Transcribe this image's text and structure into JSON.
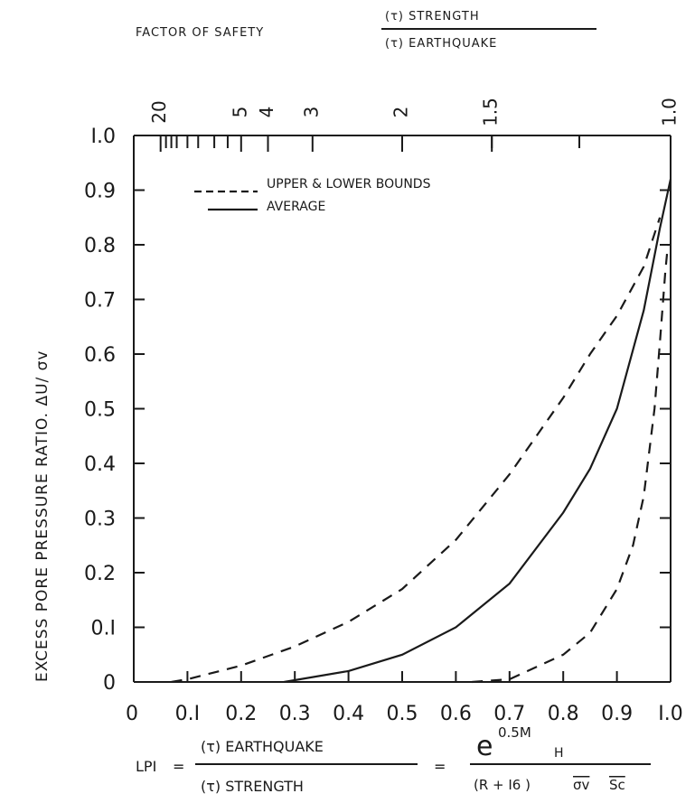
{
  "chart_data": {
    "type": "line",
    "title": "",
    "xlabel": "",
    "ylabel": "EXCESS PORE PRESSURE RATIO. ΔU/ σv",
    "xlim": [
      0,
      1.0
    ],
    "ylim": [
      0,
      1.0
    ],
    "x_ticks": [
      "0",
      "0.1",
      "0.2",
      "0.3",
      "0.4",
      "0.5",
      "0.6",
      "0.7",
      "0.8",
      "0.9",
      "1.0"
    ],
    "y_ticks": [
      "0",
      "0.1",
      "0.2",
      "0.3",
      "0.4",
      "0.5",
      "0.6",
      "0.7",
      "0.8",
      "0.9",
      "1.0"
    ],
    "x_ticks_display": [
      "0",
      "0.I",
      "0.2",
      "0.3",
      "0.4",
      "0.5",
      "0.6",
      "0.7",
      "0.8",
      "0.9",
      "I.0"
    ],
    "y_ticks_display": [
      "0",
      "0.I",
      "0.2",
      "0.3",
      "0.4",
      "0.5",
      "0.6",
      "0.7",
      "0.8",
      "0.9",
      "I.0"
    ],
    "grid": false,
    "legend_position": "top-left",
    "series": [
      {
        "name": "UPPER & LOWER BOUNDS",
        "style": "dashed",
        "x": [
          0.07,
          0.1,
          0.2,
          0.3,
          0.4,
          0.5,
          0.6,
          0.7,
          0.8,
          0.85,
          0.9,
          0.95,
          0.98
        ],
        "y": [
          0.0,
          0.005,
          0.03,
          0.065,
          0.11,
          0.17,
          0.26,
          0.38,
          0.52,
          0.6,
          0.67,
          0.76,
          0.85
        ]
      },
      {
        "name": "UPPER & LOWER BOUNDS",
        "style": "dashed",
        "x": [
          0.63,
          0.7,
          0.8,
          0.85,
          0.9,
          0.93,
          0.95,
          0.97,
          0.98,
          0.99,
          0.995
        ],
        "y": [
          0.0,
          0.005,
          0.05,
          0.09,
          0.17,
          0.25,
          0.34,
          0.5,
          0.62,
          0.75,
          0.8
        ]
      },
      {
        "name": "AVERAGE",
        "style": "solid",
        "x": [
          0.28,
          0.4,
          0.5,
          0.6,
          0.7,
          0.8,
          0.85,
          0.9,
          0.95,
          0.98,
          1.0
        ],
        "y": [
          0.0,
          0.02,
          0.05,
          0.1,
          0.18,
          0.31,
          0.39,
          0.5,
          0.68,
          0.83,
          0.92
        ]
      }
    ],
    "top_axis": {
      "label_prefix": "FACTOR OF SAFETY",
      "numerator": "(τ) STRENGTH",
      "denominator": "(τ) EARTHQUAKE",
      "ticks": [
        {
          "label": "20",
          "x": 0.05
        },
        {
          "label": "5",
          "x": 0.2
        },
        {
          "label": "4",
          "x": 0.25
        },
        {
          "label": "3",
          "x": 0.333
        },
        {
          "label": "2",
          "x": 0.5
        },
        {
          "label": "1.5",
          "x": 0.667
        },
        {
          "label": "1.0",
          "x": 1.0
        }
      ],
      "minor_ticks": [
        0.06,
        0.07,
        0.08,
        0.1,
        0.12,
        0.15,
        0.175,
        0.5,
        0.667,
        0.83
      ]
    },
    "equation": {
      "lhs": "LPI",
      "num1": "(τ) EARTHQUAKE",
      "den1": "(τ) STRENGTH",
      "eq": "=",
      "num2_base": "e",
      "num2_exp": "0.5M",
      "num2_sub": "H",
      "den2_text": "(R + I6 )",
      "den2_sigma": "σv",
      "den2_s": "Sc"
    }
  }
}
